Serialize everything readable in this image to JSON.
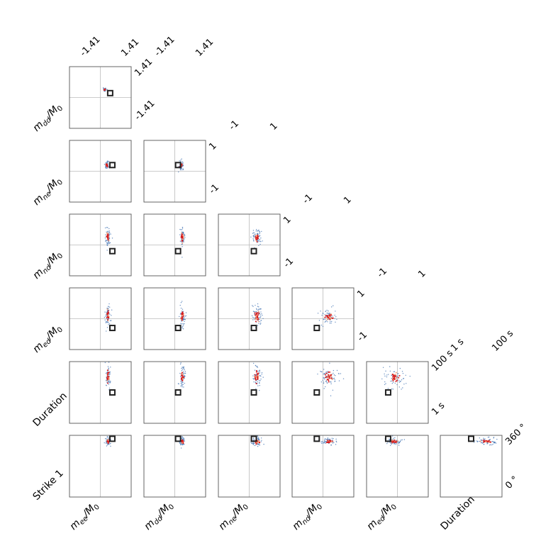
{
  "chart_data": {
    "type": "scatter",
    "title": "",
    "grid": false,
    "variables": [
      {
        "key": "mee",
        "label": [
          "m",
          "ee",
          "/M",
          "0"
        ],
        "range_labels": [
          "-1.41",
          "1.41"
        ]
      },
      {
        "key": "mdd",
        "label": [
          "m",
          "dd",
          "/M",
          "0"
        ],
        "range_labels": [
          "-1.41",
          "1.41"
        ]
      },
      {
        "key": "mne",
        "label": [
          "m",
          "ne",
          "/M",
          "0"
        ],
        "range_labels": [
          "-1",
          "1"
        ]
      },
      {
        "key": "mnd",
        "label": [
          "m",
          "nd",
          "/M",
          "0"
        ],
        "range_labels": [
          "-1",
          "1"
        ]
      },
      {
        "key": "med",
        "label": [
          "m",
          "ed",
          "/M",
          "0"
        ],
        "range_labels": [
          "-1",
          "1"
        ]
      },
      {
        "key": "duration",
        "label": [
          "Duration"
        ],
        "range_labels": [
          "1 s",
          "100 s"
        ]
      },
      {
        "key": "strike1",
        "label": [
          "Strike 1"
        ],
        "range_labels": [
          "0 °",
          "360 °"
        ]
      }
    ],
    "panels": [
      {
        "row": "mdd",
        "col": "mee",
        "cluster": [
          0.2,
          0.35,
          0.02,
          0.02
        ],
        "marker": [
          0.45,
          0.2
        ]
      },
      {
        "row": "mne",
        "col": "mee",
        "cluster": [
          0.3,
          0.2,
          0.03,
          0.04
        ],
        "marker": [
          0.55,
          0.2
        ]
      },
      {
        "row": "mne",
        "col": "mdd",
        "cluster": [
          0.3,
          0.2,
          0.03,
          0.04
        ],
        "marker": [
          0.15,
          0.2
        ]
      },
      {
        "row": "mnd",
        "col": "mee",
        "cluster": [
          0.35,
          0.25,
          0.04,
          0.1
        ],
        "marker": [
          0.55,
          -0.2
        ]
      },
      {
        "row": "mnd",
        "col": "mdd",
        "cluster": [
          0.35,
          0.25,
          0.04,
          0.1
        ],
        "marker": [
          0.15,
          -0.2
        ]
      },
      {
        "row": "mnd",
        "col": "mne",
        "cluster": [
          0.25,
          0.25,
          0.05,
          0.1
        ],
        "marker": [
          0.15,
          -0.2
        ]
      },
      {
        "row": "med",
        "col": "mee",
        "cluster": [
          0.35,
          0.1,
          0.04,
          0.12
        ],
        "marker": [
          0.55,
          -0.3
        ]
      },
      {
        "row": "med",
        "col": "mdd",
        "cluster": [
          0.35,
          0.1,
          0.04,
          0.12
        ],
        "marker": [
          0.15,
          -0.3
        ]
      },
      {
        "row": "med",
        "col": "mne",
        "cluster": [
          0.25,
          0.1,
          0.05,
          0.12
        ],
        "marker": [
          0.15,
          -0.3
        ]
      },
      {
        "row": "med",
        "col": "mnd",
        "cluster": [
          0.2,
          0.05,
          0.1,
          0.08
        ],
        "marker": [
          -0.2,
          -0.3
        ]
      },
      {
        "row": "duration",
        "col": "mee",
        "cluster": [
          0.35,
          0.5,
          0.04,
          0.12
        ],
        "marker": [
          0.55,
          0.0
        ]
      },
      {
        "row": "duration",
        "col": "mdd",
        "cluster": [
          0.35,
          0.5,
          0.04,
          0.12
        ],
        "marker": [
          0.15,
          0.0
        ]
      },
      {
        "row": "duration",
        "col": "mne",
        "cluster": [
          0.25,
          0.5,
          0.05,
          0.12
        ],
        "marker": [
          0.15,
          0.0
        ]
      },
      {
        "row": "duration",
        "col": "mnd",
        "cluster": [
          0.2,
          0.5,
          0.1,
          0.12
        ],
        "marker": [
          -0.2,
          0.0
        ]
      },
      {
        "row": "duration",
        "col": "med",
        "cluster": [
          -0.1,
          0.5,
          0.12,
          0.12
        ],
        "marker": [
          -0.3,
          0.0
        ]
      },
      {
        "row": "strike1",
        "col": "mee",
        "cluster": [
          0.35,
          324,
          0.04,
          8
        ],
        "marker": [
          0.55,
          340
        ]
      },
      {
        "row": "strike1",
        "col": "mdd",
        "cluster": [
          0.35,
          324,
          0.04,
          8
        ],
        "marker": [
          0.15,
          340
        ]
      },
      {
        "row": "strike1",
        "col": "mne",
        "cluster": [
          0.25,
          324,
          0.05,
          8
        ],
        "marker": [
          0.15,
          340
        ]
      },
      {
        "row": "strike1",
        "col": "mnd",
        "cluster": [
          0.2,
          324,
          0.08,
          6
        ],
        "marker": [
          -0.2,
          340
        ]
      },
      {
        "row": "strike1",
        "col": "med",
        "cluster": [
          -0.1,
          324,
          0.08,
          6
        ],
        "marker": [
          -0.3,
          340
        ]
      },
      {
        "row": "strike1",
        "col": "duration",
        "cluster": [
          0.5,
          324,
          0.12,
          6
        ],
        "marker": [
          0.0,
          340
        ]
      }
    ]
  },
  "colors": {
    "axes": "#555555",
    "grid": "#bbbbbb",
    "high_density": "#d7191c",
    "mid_density": "#f4a582",
    "low_density": "#4575b4",
    "marker": "#222222"
  }
}
